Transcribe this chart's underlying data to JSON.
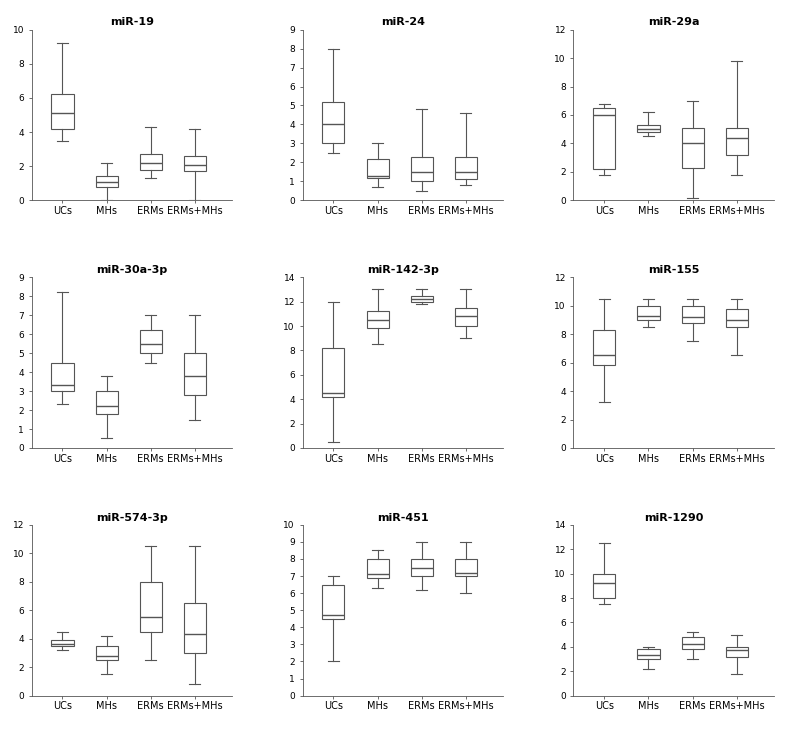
{
  "panels": [
    {
      "title": "miR-19",
      "ylim": [
        0,
        10
      ],
      "yticks": [
        0,
        2,
        4,
        6,
        8,
        10
      ],
      "groups": [
        "UCs",
        "MHs",
        "ERMs",
        "ERMs+MHs"
      ],
      "stats": [
        {
          "whislo": 3.5,
          "q1": 4.2,
          "med": 5.1,
          "q3": 6.2,
          "whishi": 9.2
        },
        {
          "whislo": 0.0,
          "q1": 0.8,
          "med": 1.1,
          "q3": 1.4,
          "whishi": 2.2
        },
        {
          "whislo": 1.3,
          "q1": 1.8,
          "med": 2.2,
          "q3": 2.7,
          "whishi": 4.3
        },
        {
          "whislo": 0.0,
          "q1": 1.7,
          "med": 2.1,
          "q3": 2.6,
          "whishi": 4.2
        }
      ]
    },
    {
      "title": "miR-24",
      "ylim": [
        0,
        9
      ],
      "yticks": [
        0,
        1,
        2,
        3,
        4,
        5,
        6,
        7,
        8,
        9
      ],
      "groups": [
        "UCs",
        "MHs",
        "ERMs",
        "ERMs+MHs"
      ],
      "stats": [
        {
          "whislo": 2.5,
          "q1": 3.0,
          "med": 4.0,
          "q3": 5.2,
          "whishi": 8.0
        },
        {
          "whislo": 0.7,
          "q1": 1.2,
          "med": 1.3,
          "q3": 2.2,
          "whishi": 3.0
        },
        {
          "whislo": 0.5,
          "q1": 1.0,
          "med": 1.5,
          "q3": 2.3,
          "whishi": 4.8
        },
        {
          "whislo": 0.8,
          "q1": 1.1,
          "med": 1.5,
          "q3": 2.3,
          "whishi": 4.6
        }
      ]
    },
    {
      "title": "miR-29a",
      "ylim": [
        0,
        12
      ],
      "yticks": [
        0,
        2,
        4,
        6,
        8,
        10,
        12
      ],
      "groups": [
        "UCs",
        "MHs",
        "ERMs",
        "ERMs+MHs"
      ],
      "stats": [
        {
          "whislo": 1.8,
          "q1": 2.2,
          "med": 6.0,
          "q3": 6.5,
          "whishi": 6.8
        },
        {
          "whislo": 4.5,
          "q1": 4.8,
          "med": 5.0,
          "q3": 5.3,
          "whishi": 6.2
        },
        {
          "whislo": 0.2,
          "q1": 2.3,
          "med": 4.0,
          "q3": 5.1,
          "whishi": 7.0
        },
        {
          "whislo": 1.8,
          "q1": 3.2,
          "med": 4.4,
          "q3": 5.1,
          "whishi": 9.8
        }
      ]
    },
    {
      "title": "miR-30a-3p",
      "ylim": [
        0,
        9
      ],
      "yticks": [
        0,
        1,
        2,
        3,
        4,
        5,
        6,
        7,
        8,
        9
      ],
      "groups": [
        "UCs",
        "MHs",
        "ERMs",
        "ERMs+MHs"
      ],
      "stats": [
        {
          "whislo": 2.3,
          "q1": 3.0,
          "med": 3.3,
          "q3": 4.5,
          "whishi": 8.2
        },
        {
          "whislo": 0.5,
          "q1": 1.8,
          "med": 2.2,
          "q3": 3.0,
          "whishi": 3.8
        },
        {
          "whislo": 4.5,
          "q1": 5.0,
          "med": 5.5,
          "q3": 6.2,
          "whishi": 7.0
        },
        {
          "whislo": 1.5,
          "q1": 2.8,
          "med": 3.8,
          "q3": 5.0,
          "whishi": 7.0
        }
      ]
    },
    {
      "title": "miR-142-3p",
      "ylim": [
        0,
        14
      ],
      "yticks": [
        0,
        2,
        4,
        6,
        8,
        10,
        12,
        14
      ],
      "groups": [
        "UCs",
        "MHs",
        "ERMs",
        "ERMs+MHs"
      ],
      "stats": [
        {
          "whislo": 0.5,
          "q1": 4.2,
          "med": 4.5,
          "q3": 8.2,
          "whishi": 12.0
        },
        {
          "whislo": 8.5,
          "q1": 9.8,
          "med": 10.5,
          "q3": 11.2,
          "whishi": 13.0
        },
        {
          "whislo": 11.8,
          "q1": 12.0,
          "med": 12.2,
          "q3": 12.5,
          "whishi": 13.0
        },
        {
          "whislo": 9.0,
          "q1": 10.0,
          "med": 10.8,
          "q3": 11.5,
          "whishi": 13.0
        }
      ]
    },
    {
      "title": "miR-155",
      "ylim": [
        0,
        12
      ],
      "yticks": [
        0,
        2,
        4,
        6,
        8,
        10,
        12
      ],
      "groups": [
        "UCs",
        "MHs",
        "ERMs",
        "ERMs+MHs"
      ],
      "stats": [
        {
          "whislo": 3.2,
          "q1": 5.8,
          "med": 6.5,
          "q3": 8.3,
          "whishi": 10.5
        },
        {
          "whislo": 8.5,
          "q1": 9.0,
          "med": 9.3,
          "q3": 10.0,
          "whishi": 10.5
        },
        {
          "whislo": 7.5,
          "q1": 8.8,
          "med": 9.2,
          "q3": 10.0,
          "whishi": 10.5
        },
        {
          "whislo": 6.5,
          "q1": 8.5,
          "med": 9.0,
          "q3": 9.8,
          "whishi": 10.5
        }
      ]
    },
    {
      "title": "miR-574-3p",
      "ylim": [
        0,
        12
      ],
      "yticks": [
        0,
        2,
        4,
        6,
        8,
        10,
        12
      ],
      "groups": [
        "UCs",
        "MHs",
        "ERMs",
        "ERMs+MHs"
      ],
      "stats": [
        {
          "whislo": 3.2,
          "q1": 3.5,
          "med": 3.6,
          "q3": 3.9,
          "whishi": 4.5
        },
        {
          "whislo": 1.5,
          "q1": 2.5,
          "med": 2.8,
          "q3": 3.5,
          "whishi": 4.2
        },
        {
          "whislo": 2.5,
          "q1": 4.5,
          "med": 5.5,
          "q3": 8.0,
          "whishi": 10.5
        },
        {
          "whislo": 0.8,
          "q1": 3.0,
          "med": 4.3,
          "q3": 6.5,
          "whishi": 10.5
        }
      ]
    },
    {
      "title": "miR-451",
      "ylim": [
        0,
        10
      ],
      "yticks": [
        0,
        1,
        2,
        3,
        4,
        5,
        6,
        7,
        8,
        9,
        10
      ],
      "groups": [
        "UCs",
        "MHs",
        "ERMs",
        "ERMs+MHs"
      ],
      "stats": [
        {
          "whislo": 2.0,
          "q1": 4.5,
          "med": 4.7,
          "q3": 6.5,
          "whishi": 7.0
        },
        {
          "whislo": 6.3,
          "q1": 6.9,
          "med": 7.1,
          "q3": 8.0,
          "whishi": 8.5
        },
        {
          "whislo": 6.2,
          "q1": 7.0,
          "med": 7.5,
          "q3": 8.0,
          "whishi": 9.0
        },
        {
          "whislo": 6.0,
          "q1": 7.0,
          "med": 7.2,
          "q3": 8.0,
          "whishi": 9.0
        }
      ]
    },
    {
      "title": "miR-1290",
      "ylim": [
        0,
        14
      ],
      "yticks": [
        0,
        2,
        4,
        6,
        8,
        10,
        12,
        14
      ],
      "groups": [
        "UCs",
        "MHs",
        "ERMs",
        "ERMs+MHs"
      ],
      "stats": [
        {
          "whislo": 7.5,
          "q1": 8.0,
          "med": 9.2,
          "q3": 10.0,
          "whishi": 12.5
        },
        {
          "whislo": 2.2,
          "q1": 3.0,
          "med": 3.3,
          "q3": 3.8,
          "whishi": 4.0
        },
        {
          "whislo": 3.0,
          "q1": 3.8,
          "med": 4.2,
          "q3": 4.8,
          "whishi": 5.2
        },
        {
          "whislo": 1.8,
          "q1": 3.2,
          "med": 3.7,
          "q3": 4.0,
          "whishi": 5.0
        }
      ]
    }
  ],
  "title_fontsize": 8,
  "tick_fontsize": 6.5,
  "label_fontsize": 7
}
